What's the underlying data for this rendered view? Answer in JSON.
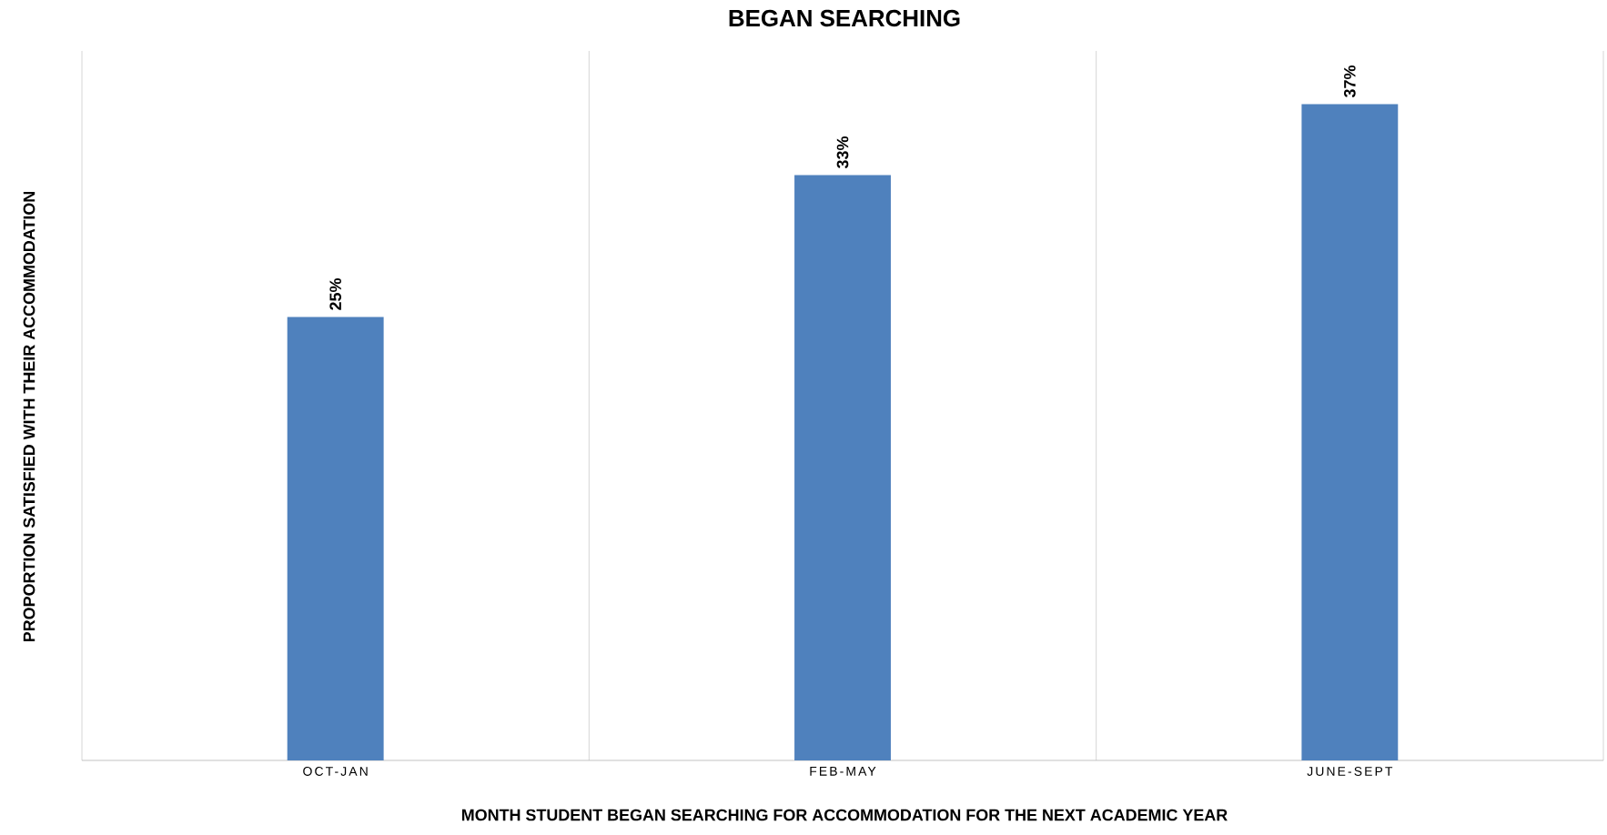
{
  "chart_data": {
    "type": "bar",
    "title": "BEGAN SEARCHING",
    "xlabel": "MONTH STUDENT BEGAN SEARCHING FOR ACCOMMODATION FOR THE NEXT ACADEMIC YEAR",
    "ylabel": "PROPORTION SATISFIED WITH THEIR ACCOMMODATION",
    "categories": [
      "OCT-JAN",
      "FEB-MAY",
      "JUNE-SEPT"
    ],
    "values": [
      25,
      33,
      37
    ],
    "value_labels": [
      "25%",
      "33%",
      "37%"
    ],
    "color": "#4f81bd",
    "ylim": [
      0,
      40
    ],
    "grid": "x"
  }
}
